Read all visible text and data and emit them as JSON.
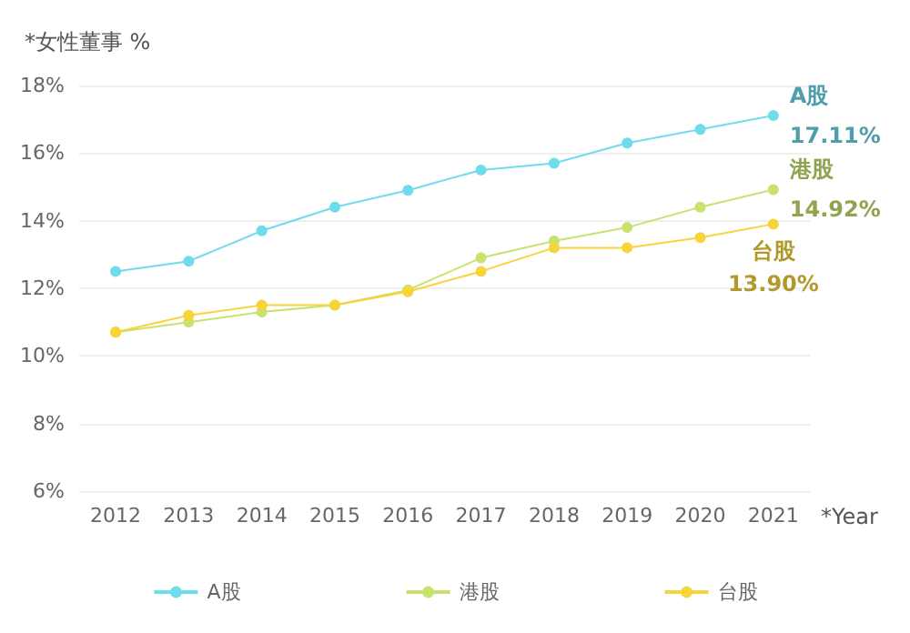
{
  "chart_data": {
    "type": "line",
    "ylabel": "*女性董事 %",
    "xlabel": "*Year",
    "categories": [
      "2012",
      "2013",
      "2014",
      "2015",
      "2016",
      "2017",
      "2018",
      "2019",
      "2020",
      "2021"
    ],
    "series": [
      {
        "name": "A股",
        "color": "#6fdcee",
        "values": [
          12.5,
          12.8,
          13.7,
          14.4,
          14.9,
          15.5,
          15.7,
          16.3,
          16.7,
          17.11
        ],
        "value_labels": [
          null,
          null,
          null,
          null,
          null,
          null,
          null,
          null,
          null,
          "17.11%"
        ]
      },
      {
        "name": "港股",
        "color": "#c8e26e",
        "values": [
          10.7,
          11.0,
          11.3,
          11.5,
          11.95,
          12.9,
          13.4,
          13.8,
          14.4,
          14.92
        ],
        "value_labels": [
          null,
          null,
          null,
          null,
          null,
          null,
          null,
          null,
          null,
          "14.92%"
        ]
      },
      {
        "name": "台股",
        "color": "#f7d43a",
        "values": [
          10.7,
          11.2,
          11.5,
          11.5,
          11.9,
          12.5,
          13.2,
          13.2,
          13.5,
          13.9
        ],
        "value_labels": [
          null,
          null,
          null,
          null,
          null,
          null,
          null,
          null,
          null,
          "13.90%"
        ]
      }
    ],
    "ylim": [
      6,
      18
    ],
    "yticks": [
      {
        "value": 6,
        "label": "6%"
      },
      {
        "value": 8,
        "label": "8%"
      },
      {
        "value": 10,
        "label": "10%"
      },
      {
        "value": 12,
        "label": "12%"
      },
      {
        "value": 14,
        "label": "14%"
      },
      {
        "value": 16,
        "label": "16%"
      },
      {
        "value": 18,
        "label": "18%"
      }
    ],
    "grid": "y",
    "legend": "bottom",
    "marker": "circle",
    "line_style": "solid"
  }
}
